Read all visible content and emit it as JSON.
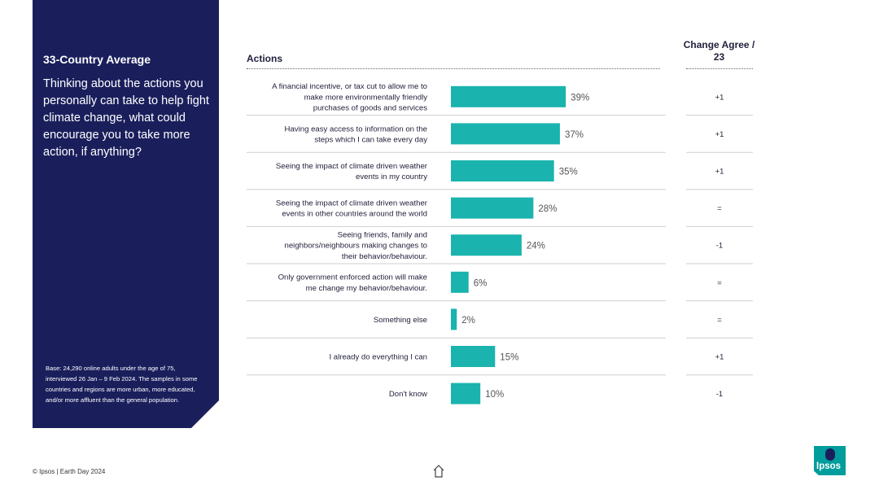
{
  "panel": {
    "title": "33-Country Average",
    "question": "Thinking about the actions you personally can take to help fight climate change, what could encourage you to take more action, if anything?",
    "base": "Base: 24,290 online adults under the age of 75, interviewed 26 Jan – 9 Feb 2024. The samples in some countries and regions are more urban, more educated, and/or more affluent than the general population."
  },
  "header": {
    "actions": "Actions",
    "change": "Change Agree / 23"
  },
  "footer": {
    "text": "© Ipsos | Earth Day 2024",
    "logo": "Ipsos"
  },
  "icons": {
    "home": "home-icon",
    "logo_mark": "ipsos-logo"
  },
  "colors": {
    "panel": "#1a1f5c",
    "bar": "#1ab3ae",
    "logo": "#009d9c"
  },
  "chart_data": {
    "type": "bar",
    "orientation": "horizontal",
    "categories": [
      [
        "A financial incentive, or tax cut to allow me to",
        "make more environmentally friendly",
        "purchases of goods and services"
      ],
      [
        "Having easy access to information on the",
        "steps which I can take every day"
      ],
      [
        "Seeing the impact of climate driven weather",
        "events in my country"
      ],
      [
        "Seeing the impact of climate driven weather",
        "events in other countries around the world"
      ],
      [
        "Seeing friends, family and",
        "neighbors/neighbours making changes to",
        "their behavior/behaviour."
      ],
      [
        "Only government enforced action will make",
        "me change my behavior/behaviour."
      ],
      [
        "Something else"
      ],
      [
        "I already do everything I can"
      ],
      [
        "Don't know"
      ]
    ],
    "values": [
      39,
      37,
      35,
      28,
      24,
      6,
      2,
      15,
      10
    ],
    "value_labels": [
      "39%",
      "37%",
      "35%",
      "28%",
      "24%",
      "6%",
      "2%",
      "15%",
      "10%"
    ],
    "change": [
      "+1",
      "+1",
      "+1",
      "=",
      "-1",
      "=",
      "=",
      "+1",
      "-1"
    ],
    "unit": "%",
    "xlim": [
      0,
      100
    ],
    "grid": false,
    "legend": "none"
  }
}
